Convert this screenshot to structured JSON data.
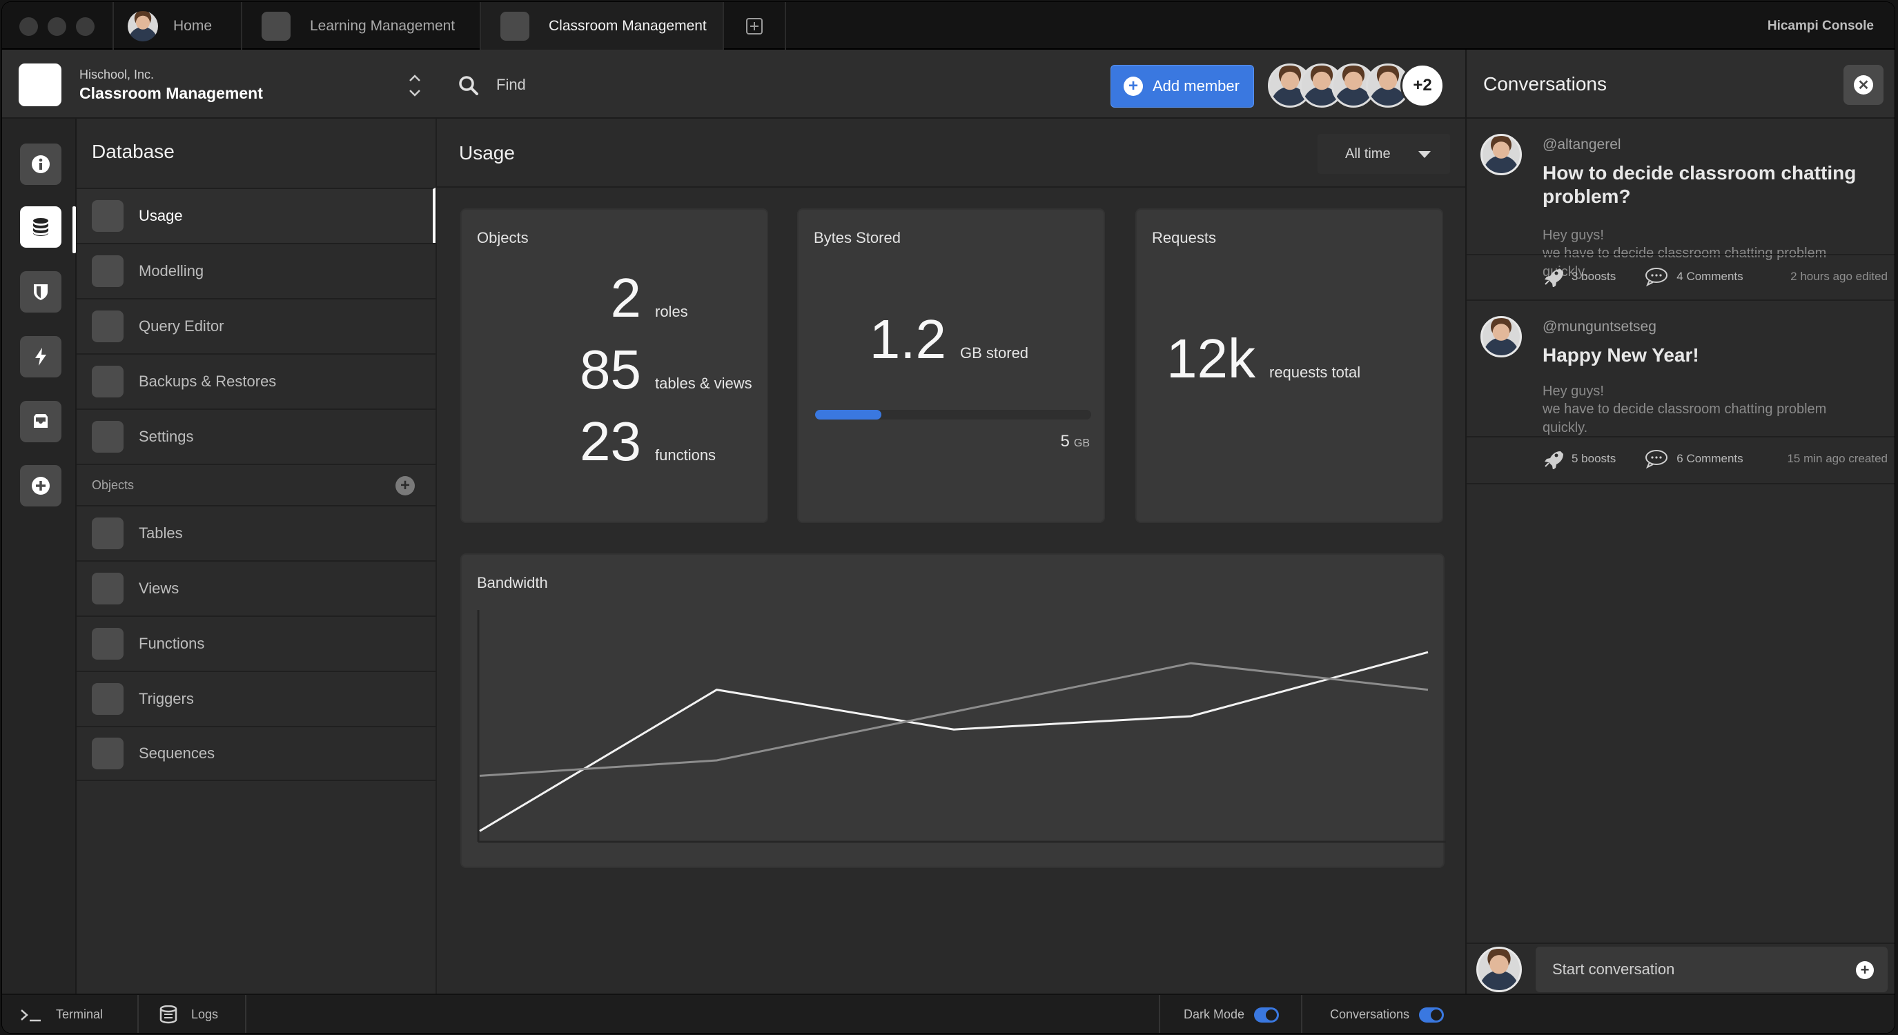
{
  "titlebar": {
    "tabs": [
      {
        "label": "Home"
      },
      {
        "label": "Learning Management"
      },
      {
        "label": "Classroom Management"
      }
    ],
    "console_name": "Hicampi Console"
  },
  "org": {
    "company": "Hischool, Inc.",
    "workspace": "Classroom Management"
  },
  "topbar": {
    "search_placeholder": "Find",
    "add_member_label": "Add member",
    "extra_members": "+2"
  },
  "nav": {
    "title": "Database",
    "items": [
      {
        "label": "Usage",
        "active": true
      },
      {
        "label": "Modelling"
      },
      {
        "label": "Query Editor"
      },
      {
        "label": "Backups & Restores"
      },
      {
        "label": "Settings"
      }
    ],
    "objects_section": "Objects",
    "object_items": [
      {
        "label": "Tables"
      },
      {
        "label": "Views"
      },
      {
        "label": "Functions"
      },
      {
        "label": "Triggers"
      },
      {
        "label": "Sequences"
      }
    ]
  },
  "usage": {
    "title": "Usage",
    "range": "All time",
    "objects": {
      "title": "Objects",
      "stats": [
        {
          "value": "2",
          "unit": "roles"
        },
        {
          "value": "85",
          "unit": "tables & views"
        },
        {
          "value": "23",
          "unit": "functions"
        }
      ]
    },
    "bytes": {
      "title": "Bytes Stored",
      "value": "1.2",
      "unit": "GB stored",
      "quota_value": "5",
      "quota_unit": "GB",
      "progress_fraction": 0.24
    },
    "requests": {
      "title": "Requests",
      "value": "12k",
      "unit": "requests total"
    }
  },
  "chart_data": {
    "type": "line",
    "title": "Bandwidth",
    "xlabel": "",
    "ylabel": "",
    "x": [
      0,
      1,
      2,
      3,
      4
    ],
    "ylim": [
      0,
      100
    ],
    "grid": false,
    "series": [
      {
        "values": [
          3,
          67,
          49,
          55,
          84
        ],
        "color": "#f2f2f2"
      },
      {
        "values": [
          28,
          35,
          57,
          79,
          67
        ],
        "color": "#8d8d8d"
      }
    ]
  },
  "conversations": {
    "title": "Conversations",
    "posts": [
      {
        "handle": "@altangerel",
        "title": "How to decide classroom chatting problem?",
        "body_lines": [
          "Hey guys!",
          "we have to decide classroom chatting problem quickly."
        ],
        "boosts": "3 boosts",
        "comments": "4 Comments",
        "time": "2 hours ago edited"
      },
      {
        "handle": "@munguntsetseg",
        "title": "Happy New Year!",
        "body_lines": [
          "Hey guys!",
          "we have to decide classroom chatting problem quickly."
        ],
        "boosts": "5 boosts",
        "comments": "6 Comments",
        "time": "15 min ago created"
      }
    ],
    "composer_placeholder": "Start conversation"
  },
  "statusbar": {
    "terminal": "Terminal",
    "logs": "Logs",
    "dark_mode": "Dark Mode",
    "dark_mode_on": true,
    "conversations": "Conversations",
    "conversations_on": true
  },
  "colors": {
    "accent": "#3a78e0",
    "background": "#2b2b2b",
    "card": "#393939"
  }
}
